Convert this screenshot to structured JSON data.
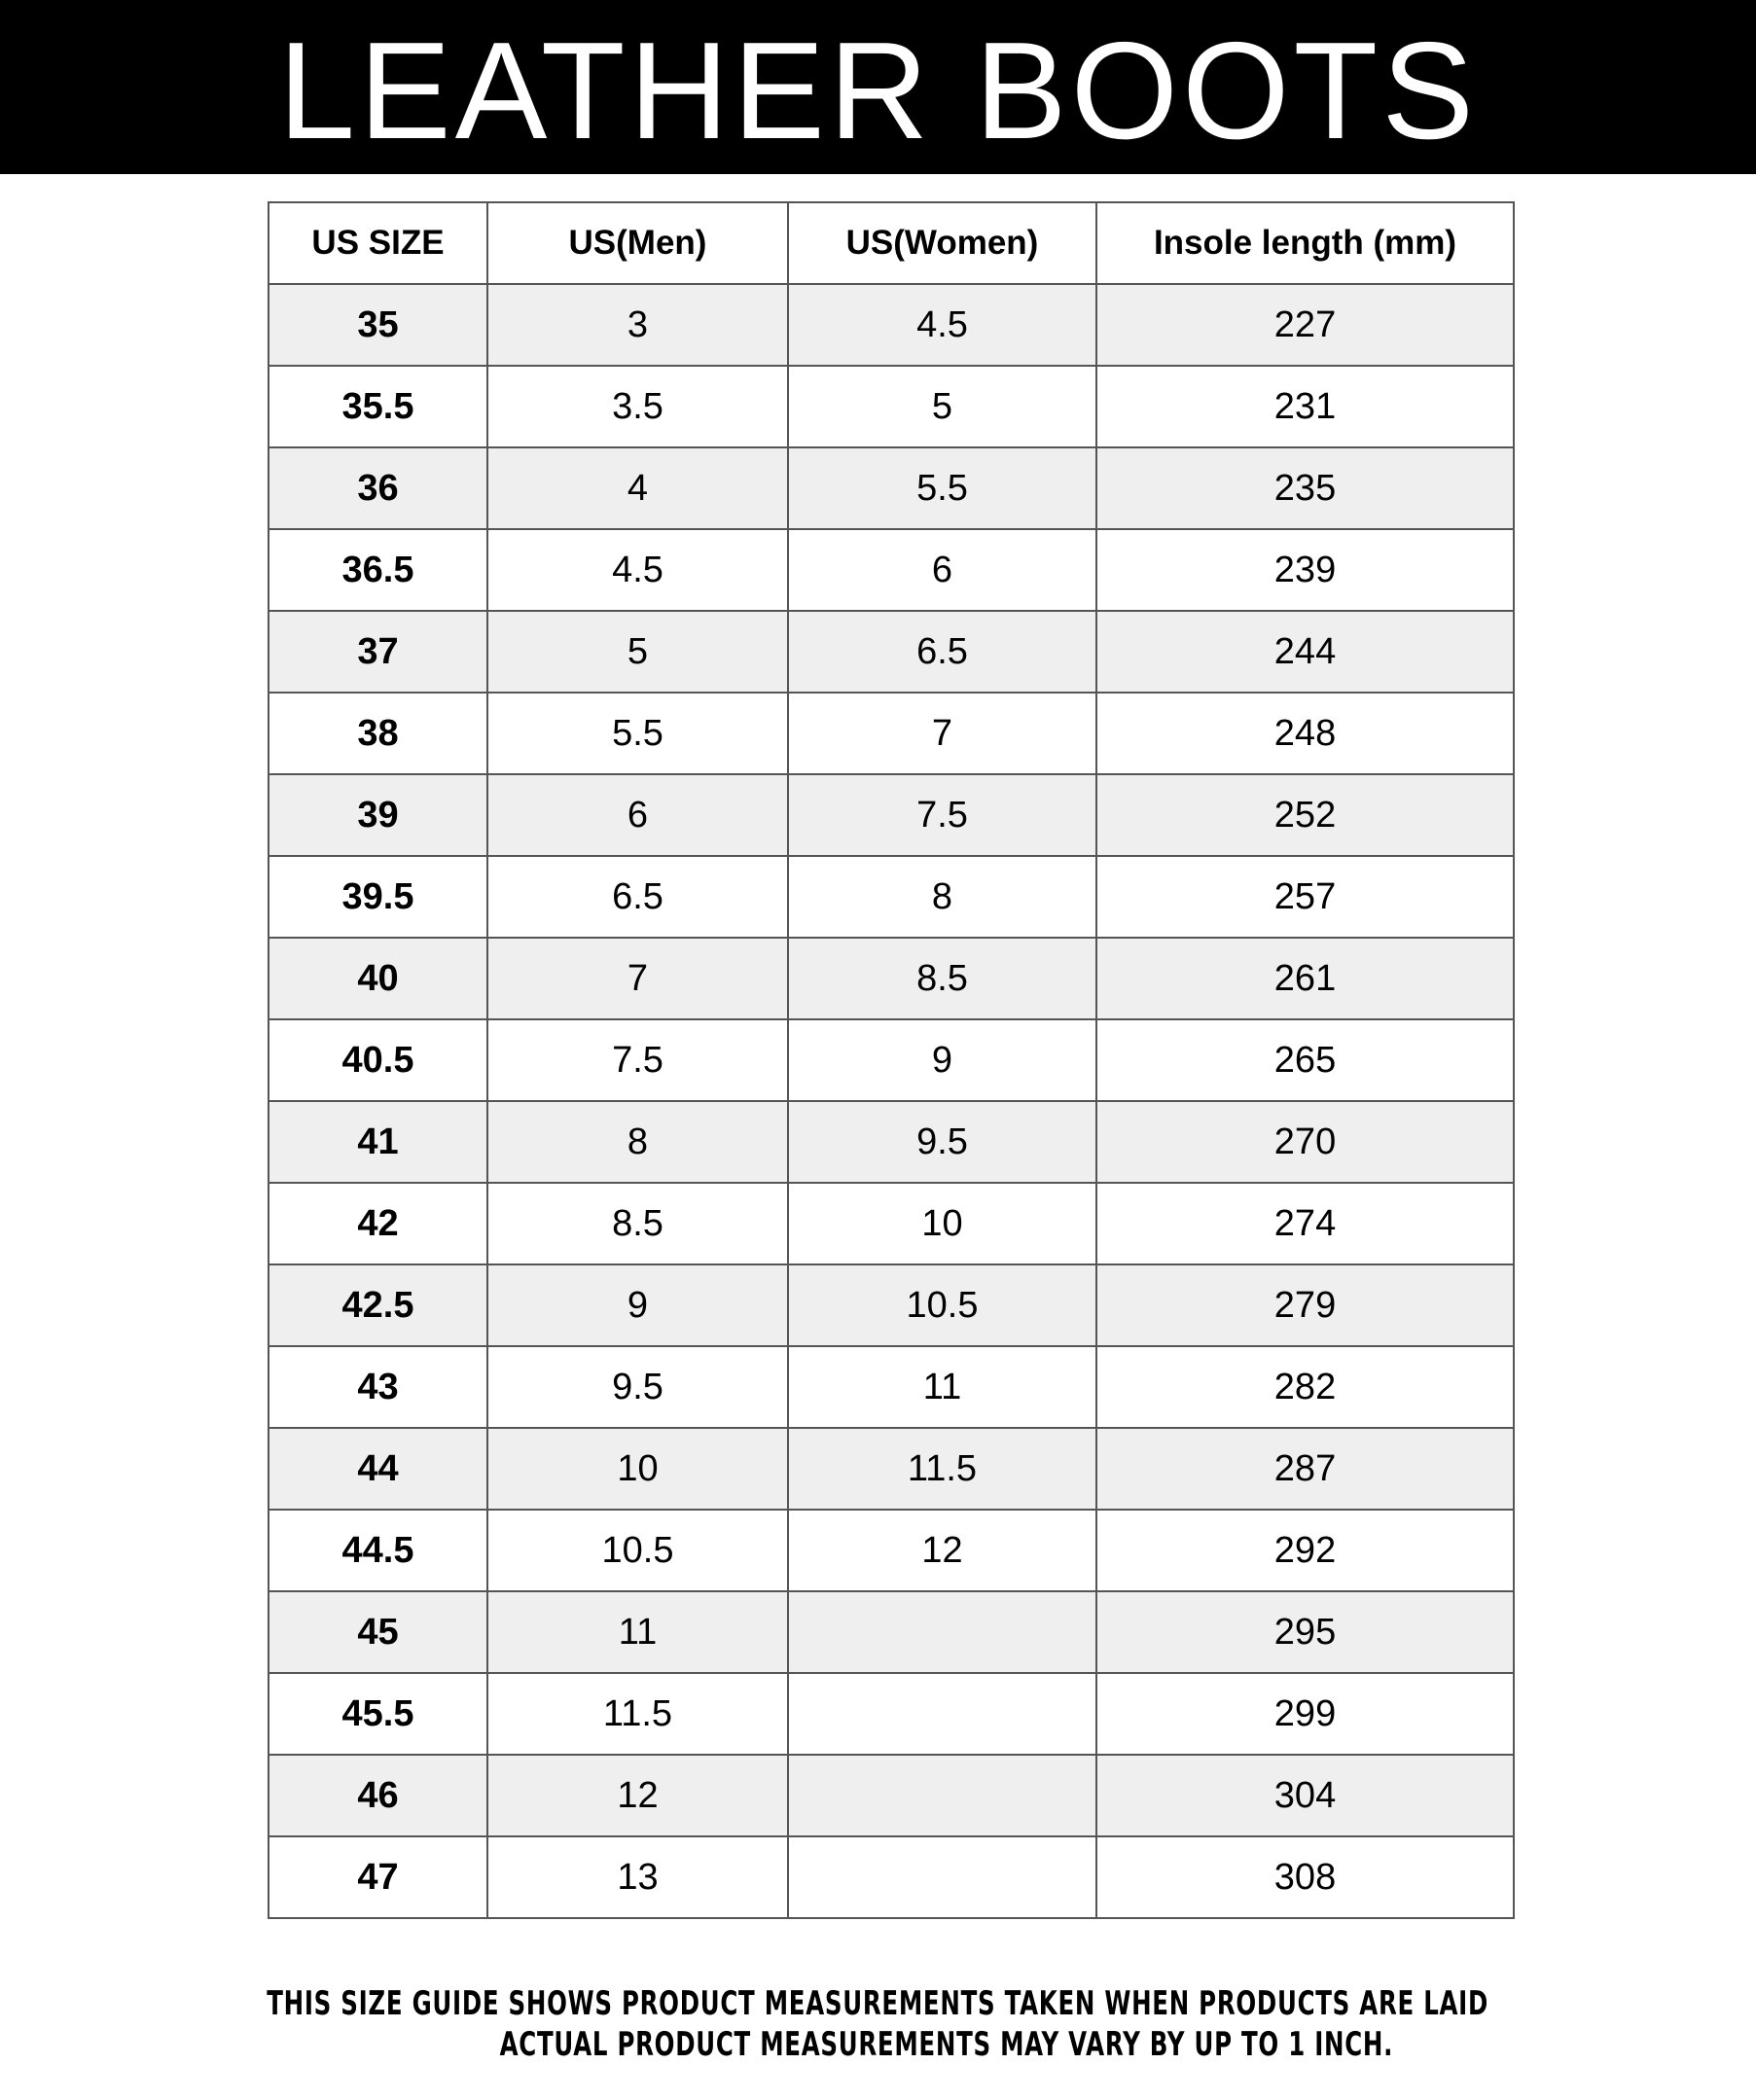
{
  "title": "LEATHER BOOTS",
  "table": {
    "headers": [
      "US SIZE",
      "US(Men)",
      "US(Women)",
      "Insole length (mm)"
    ],
    "rows": [
      [
        "35",
        "3",
        "4.5",
        "227"
      ],
      [
        "35.5",
        "3.5",
        "5",
        "231"
      ],
      [
        "36",
        "4",
        "5.5",
        "235"
      ],
      [
        "36.5",
        "4.5",
        "6",
        "239"
      ],
      [
        "37",
        "5",
        "6.5",
        "244"
      ],
      [
        "38",
        "5.5",
        "7",
        "248"
      ],
      [
        "39",
        "6",
        "7.5",
        "252"
      ],
      [
        "39.5",
        "6.5",
        "8",
        "257"
      ],
      [
        "40",
        "7",
        "8.5",
        "261"
      ],
      [
        "40.5",
        "7.5",
        "9",
        "265"
      ],
      [
        "41",
        "8",
        "9.5",
        "270"
      ],
      [
        "42",
        "8.5",
        "10",
        "274"
      ],
      [
        "42.5",
        "9",
        "10.5",
        "279"
      ],
      [
        "43",
        "9.5",
        "11",
        "282"
      ],
      [
        "44",
        "10",
        "11.5",
        "287"
      ],
      [
        "44.5",
        "10.5",
        "12",
        "292"
      ],
      [
        "45",
        "11",
        "",
        "295"
      ],
      [
        "45.5",
        "11.5",
        "",
        "299"
      ],
      [
        "46",
        "12",
        "",
        "304"
      ],
      [
        "47",
        "13",
        "",
        "308"
      ]
    ]
  },
  "footer": {
    "line1": "THIS SIZE GUIDE SHOWS PRODUCT MEASUREMENTS TAKEN WHEN PRODUCTS ARE LAID",
    "line2": "ACTUAL PRODUCT MEASUREMENTS MAY VARY BY UP TO 1 INCH."
  }
}
